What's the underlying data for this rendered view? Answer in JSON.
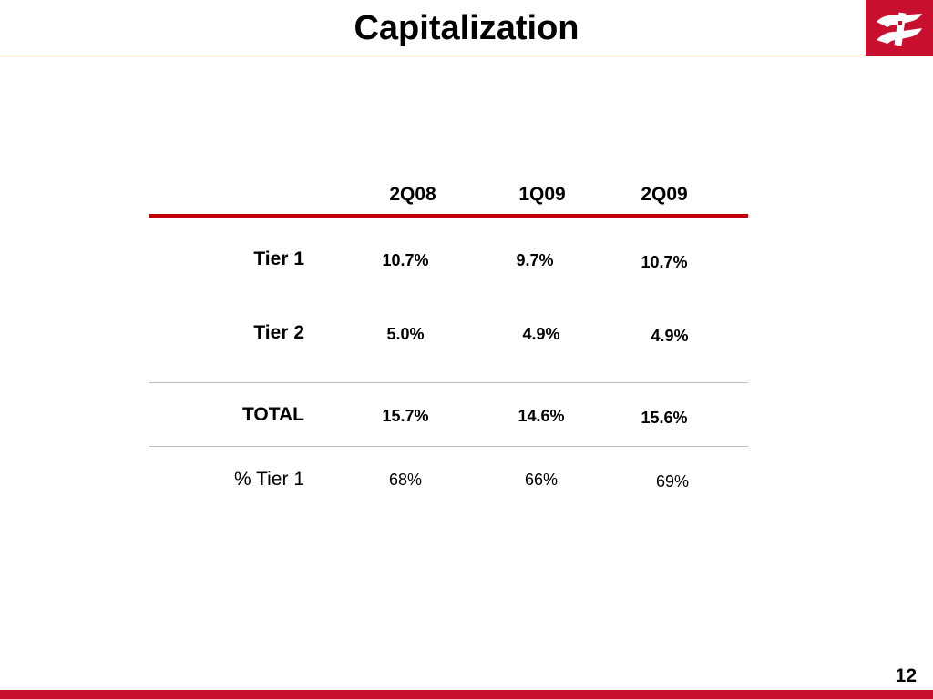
{
  "slide": {
    "title": "Capitalization",
    "page_number": "12",
    "logo_icon": "bank-logo-icon",
    "accent_color": "#c8102e"
  },
  "table": {
    "columns": [
      "2Q08",
      "1Q09",
      "2Q09"
    ],
    "rows": [
      {
        "label": "Tier 1",
        "values": [
          "10.7%",
          "9.7%",
          "10.7%"
        ]
      },
      {
        "label": "Tier 2",
        "values": [
          "5.0%",
          "4.9%",
          "4.9%"
        ]
      },
      {
        "label": "TOTAL",
        "values": [
          "15.7%",
          "14.6%",
          "15.6%"
        ]
      },
      {
        "label": "% Tier 1",
        "values": [
          "68%",
          "66%",
          "69%"
        ]
      }
    ]
  }
}
